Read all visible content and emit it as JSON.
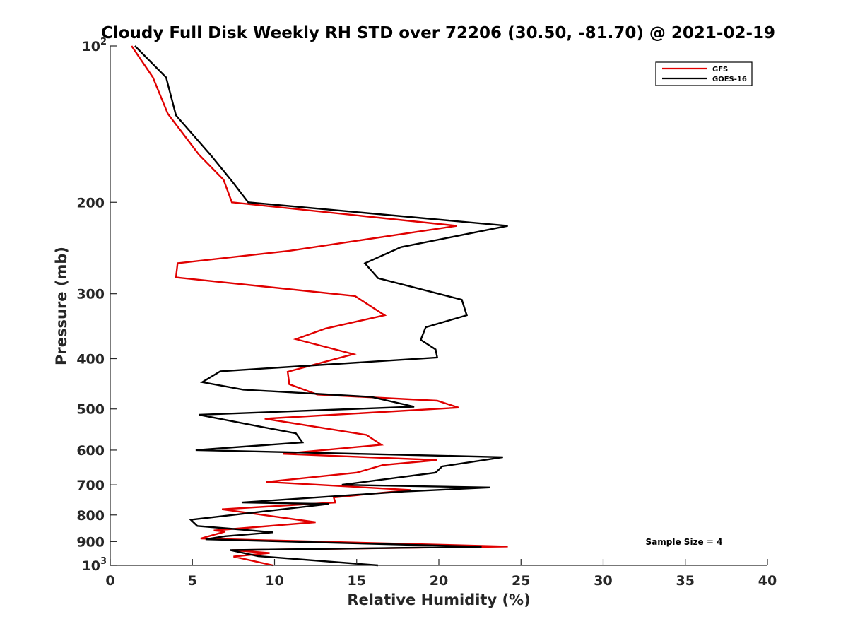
{
  "chart_data": {
    "type": "line",
    "title": "Cloudy Full Disk Weekly RH STD over 72206 (30.50, -81.70) @ 2021-02-19",
    "xlabel": "Relative Humidity (%)",
    "ylabel": "Pressure (mb)",
    "xlim": [
      0,
      40
    ],
    "ylim": [
      100,
      1000
    ],
    "yscale": "log",
    "y_reversed": true,
    "xticks": [
      0,
      5,
      10,
      15,
      20,
      25,
      30,
      35,
      40
    ],
    "yticks": [
      {
        "value": 100,
        "base": "10",
        "exp": "2"
      },
      {
        "value": 200,
        "label": "200"
      },
      {
        "value": 300,
        "label": "300"
      },
      {
        "value": 400,
        "label": "400"
      },
      {
        "value": 500,
        "label": "500"
      },
      {
        "value": 600,
        "label": "600"
      },
      {
        "value": 700,
        "label": "700"
      },
      {
        "value": 800,
        "label": "800"
      },
      {
        "value": 900,
        "label": "900"
      },
      {
        "value": 1000,
        "base": "10",
        "exp": "3"
      }
    ],
    "legend_position": "top-right",
    "annotation": "Sample Size = 4",
    "series": [
      {
        "name": "GFS",
        "color": "#e00000",
        "points": [
          [
            1.3,
            100
          ],
          [
            2.6,
            115
          ],
          [
            3.5,
            135
          ],
          [
            5.4,
            162
          ],
          [
            6.9,
            181
          ],
          [
            7.4,
            200
          ],
          [
            21.1,
            222
          ],
          [
            10.9,
            248
          ],
          [
            4.1,
            262
          ],
          [
            4.0,
            279
          ],
          [
            14.9,
            303
          ],
          [
            16.7,
            330
          ],
          [
            13.1,
            350
          ],
          [
            11.3,
            367
          ],
          [
            14.8,
            392
          ],
          [
            10.8,
            424
          ],
          [
            10.9,
            448
          ],
          [
            12.6,
            469
          ],
          [
            19.9,
            482
          ],
          [
            21.2,
            497
          ],
          [
            9.4,
            522
          ],
          [
            15.6,
            561
          ],
          [
            16.5,
            586
          ],
          [
            10.5,
            610
          ],
          [
            19.9,
            627
          ],
          [
            16.6,
            641
          ],
          [
            15.0,
            663
          ],
          [
            9.5,
            691
          ],
          [
            18.3,
            716
          ],
          [
            13.6,
            740
          ],
          [
            13.7,
            757
          ],
          [
            6.8,
            780
          ],
          [
            12.5,
            826
          ],
          [
            6.3,
            857
          ],
          [
            7.0,
            861
          ],
          [
            5.5,
            888
          ],
          [
            24.2,
            920
          ],
          [
            7.4,
            935
          ],
          [
            9.7,
            947
          ],
          [
            7.5,
            962
          ],
          [
            9.9,
            1000
          ]
        ]
      },
      {
        "name": "GOES-16",
        "color": "#000000",
        "points": [
          [
            1.5,
            100
          ],
          [
            3.4,
            115
          ],
          [
            4.0,
            136
          ],
          [
            6.1,
            162
          ],
          [
            7.4,
            182
          ],
          [
            8.4,
            200
          ],
          [
            24.2,
            222
          ],
          [
            17.7,
            244
          ],
          [
            15.5,
            262
          ],
          [
            16.3,
            280
          ],
          [
            21.4,
            308
          ],
          [
            21.7,
            330
          ],
          [
            19.2,
            348
          ],
          [
            18.9,
            368
          ],
          [
            19.8,
            384
          ],
          [
            19.9,
            398
          ],
          [
            6.7,
            423
          ],
          [
            5.6,
            444
          ],
          [
            8.1,
            459
          ],
          [
            15.9,
            474
          ],
          [
            18.5,
            495
          ],
          [
            5.4,
            513
          ],
          [
            8.9,
            539
          ],
          [
            11.3,
            557
          ],
          [
            11.7,
            580
          ],
          [
            5.2,
            600
          ],
          [
            23.9,
            619
          ],
          [
            20.2,
            645
          ],
          [
            19.8,
            663
          ],
          [
            14.1,
            700
          ],
          [
            23.1,
            708
          ],
          [
            17.9,
            721
          ],
          [
            8.0,
            757
          ],
          [
            13.3,
            762
          ],
          [
            4.9,
            817
          ],
          [
            5.3,
            840
          ],
          [
            7.5,
            851
          ],
          [
            9.9,
            864
          ],
          [
            7.0,
            879
          ],
          [
            5.8,
            891
          ],
          [
            22.6,
            921
          ],
          [
            7.3,
            935
          ],
          [
            9.0,
            960
          ],
          [
            16.3,
            1000
          ]
        ]
      }
    ]
  }
}
